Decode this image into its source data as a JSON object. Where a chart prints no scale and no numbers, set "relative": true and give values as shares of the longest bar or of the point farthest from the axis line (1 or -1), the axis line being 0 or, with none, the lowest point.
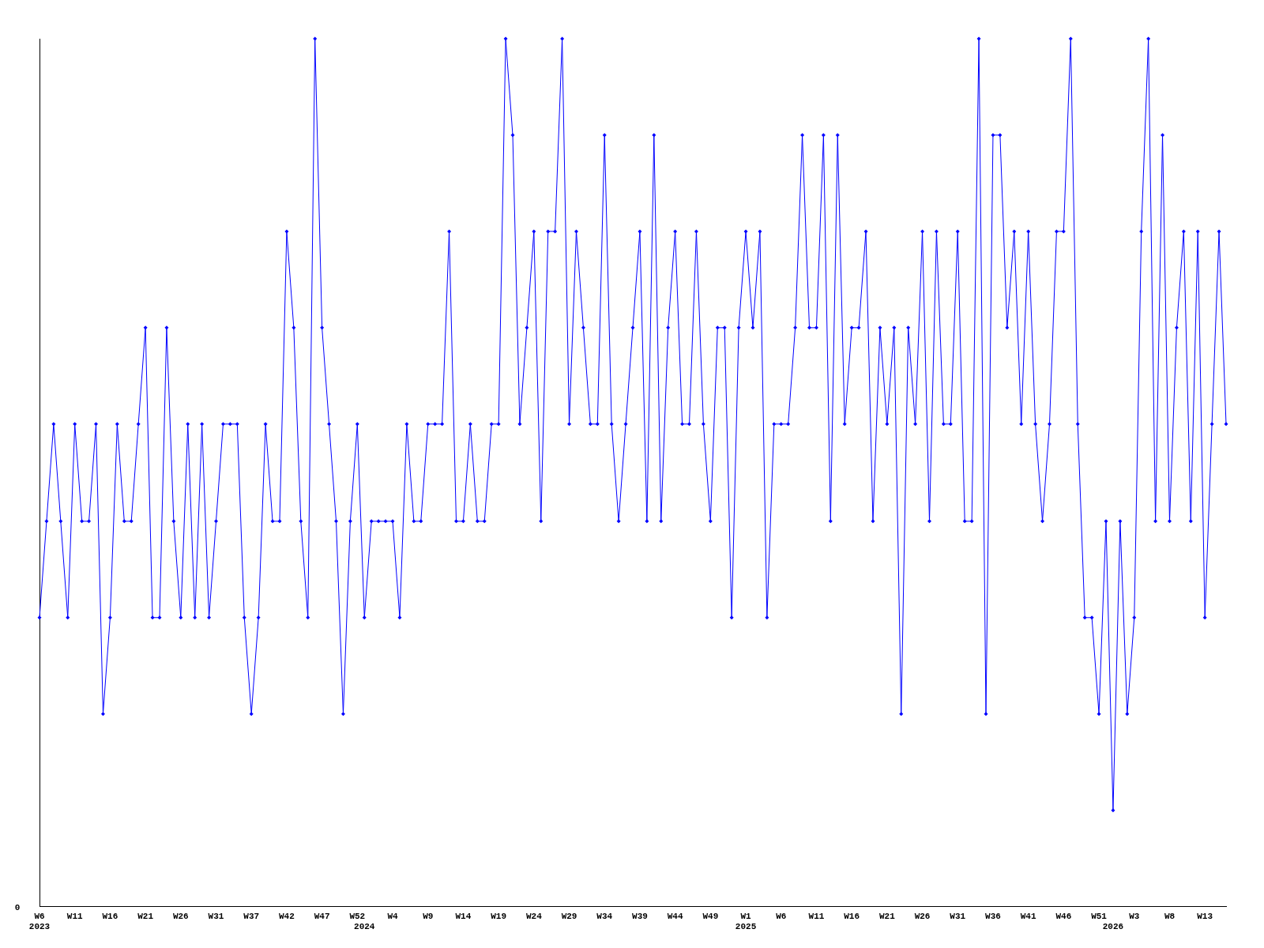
{
  "chart_data": {
    "type": "line",
    "relative": true,
    "marker": "diamond",
    "line_style": "solid",
    "grid": false,
    "legend": false,
    "categories": [
      "W6\n2023",
      null,
      null,
      null,
      null,
      "W11",
      null,
      null,
      null,
      null,
      "W16",
      null,
      null,
      null,
      null,
      "W21",
      null,
      null,
      null,
      null,
      "W26",
      null,
      null,
      null,
      null,
      "W31",
      null,
      null,
      null,
      null,
      "W37",
      null,
      null,
      null,
      null,
      "W42",
      null,
      null,
      null,
      null,
      "W47",
      null,
      null,
      null,
      null,
      "W52",
      "\n2024",
      null,
      null,
      null,
      "W4",
      null,
      null,
      null,
      null,
      "W9",
      null,
      null,
      null,
      null,
      "W14",
      null,
      null,
      null,
      null,
      "W19",
      null,
      null,
      null,
      null,
      "W24",
      null,
      null,
      null,
      null,
      "W29",
      null,
      null,
      null,
      null,
      "W34",
      null,
      null,
      null,
      null,
      "W39",
      null,
      null,
      null,
      null,
      "W44",
      null,
      null,
      null,
      null,
      "W49",
      null,
      null,
      null,
      null,
      "W1\n2025",
      null,
      null,
      null,
      null,
      "W6",
      null,
      null,
      null,
      null,
      "W11",
      null,
      null,
      null,
      null,
      "W16",
      null,
      null,
      null,
      null,
      "W21",
      null,
      null,
      null,
      null,
      "W26",
      null,
      null,
      null,
      null,
      "W31",
      null,
      null,
      null,
      null,
      "W36",
      null,
      null,
      null,
      null,
      "W41",
      null,
      null,
      null,
      null,
      "W46",
      null,
      null,
      null,
      null,
      "W51",
      null,
      "\n2026",
      null,
      null,
      "W3",
      null,
      null,
      null,
      null,
      "W8",
      null,
      null,
      null,
      null,
      "W13",
      null,
      null,
      null
    ],
    "series": [
      {
        "color": "#0000ff",
        "values": [
          0.333,
          0.444,
          0.556,
          0.444,
          0.333,
          0.556,
          0.444,
          0.444,
          0.556,
          0.222,
          0.333,
          0.556,
          0.444,
          0.444,
          0.556,
          0.667,
          0.333,
          0.333,
          0.667,
          0.444,
          0.333,
          0.556,
          0.333,
          0.556,
          0.333,
          0.444,
          0.556,
          0.556,
          0.556,
          0.333,
          0.222,
          0.333,
          0.556,
          0.444,
          0.444,
          0.778,
          0.667,
          0.444,
          0.333,
          1,
          0.667,
          0.556,
          0.444,
          0.222,
          0.444,
          0.556,
          0.333,
          0.444,
          0.444,
          0.444,
          0.444,
          0.333,
          0.556,
          0.444,
          0.444,
          0.556,
          0.556,
          0.556,
          0.778,
          0.444,
          0.444,
          0.556,
          0.444,
          0.444,
          0.556,
          0.556,
          1,
          0.889,
          0.556,
          0.667,
          0.778,
          0.444,
          0.778,
          0.778,
          1,
          0.556,
          0.778,
          0.667,
          0.556,
          0.556,
          0.889,
          0.556,
          0.444,
          0.556,
          0.667,
          0.778,
          0.444,
          0.889,
          0.444,
          0.667,
          0.778,
          0.556,
          0.556,
          0.778,
          0.556,
          0.444,
          0.667,
          0.667,
          0.333,
          0.667,
          0.778,
          0.667,
          0.778,
          0.333,
          0.556,
          0.556,
          0.556,
          0.667,
          0.889,
          0.667,
          0.667,
          0.889,
          0.444,
          0.889,
          0.556,
          0.667,
          0.667,
          0.778,
          0.444,
          0.667,
          0.556,
          0.667,
          0.222,
          0.667,
          0.556,
          0.778,
          0.444,
          0.778,
          0.556,
          0.556,
          0.778,
          0.444,
          0.444,
          1,
          0.222,
          0.889,
          0.889,
          0.667,
          0.778,
          0.556,
          0.778,
          0.556,
          0.444,
          0.556,
          0.778,
          0.778,
          1,
          0.556,
          0.333,
          0.333,
          0.222,
          0.444,
          0.111,
          0.444,
          0.222,
          0.333,
          0.778,
          1,
          0.444,
          0.889,
          0.444,
          0.667,
          0.778,
          0.444,
          0.778,
          0.333,
          0.556,
          0.778,
          0.556
        ]
      }
    ],
    "annotations": [
      "0"
    ]
  }
}
